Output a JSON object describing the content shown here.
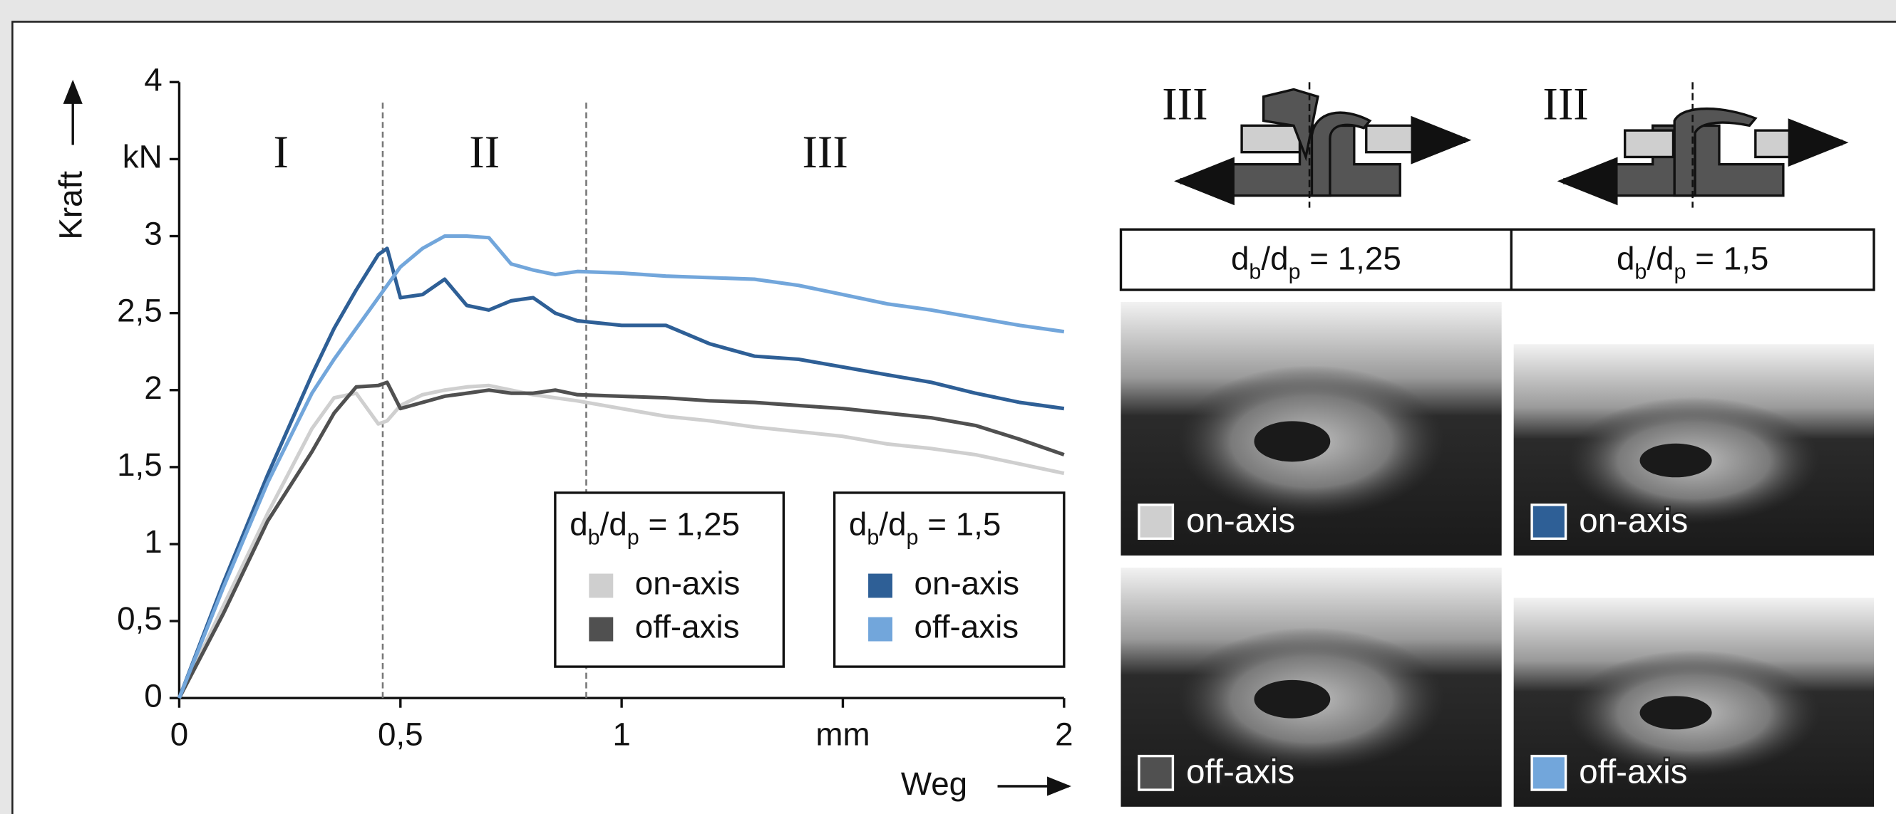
{
  "chart_data": {
    "type": "line",
    "y_label": "Kraft",
    "x_label": "Weg",
    "x": [
      0,
      0.1,
      0.2,
      0.3,
      0.35,
      0.4,
      0.45,
      0.47,
      0.5,
      0.55,
      0.6,
      0.65,
      0.7,
      0.75,
      0.8,
      0.85,
      0.9,
      1.0,
      1.1,
      1.2,
      1.3,
      1.4,
      1.5,
      1.6,
      1.7,
      1.8,
      1.9,
      2.0
    ],
    "series": [
      {
        "name": "on-axis",
        "color": "#cfcfcf",
        "values": [
          0,
          0.6,
          1.2,
          1.75,
          1.95,
          1.98,
          1.78,
          1.8,
          1.9,
          1.97,
          2.0,
          2.02,
          2.03,
          2.0,
          1.97,
          1.95,
          1.93,
          1.88,
          1.83,
          1.8,
          1.76,
          1.73,
          1.7,
          1.65,
          1.62,
          1.58,
          1.52,
          1.46
        ]
      },
      {
        "name": "off-axis",
        "color": "#505050",
        "values": [
          0,
          0.55,
          1.15,
          1.6,
          1.85,
          2.02,
          2.03,
          2.05,
          1.88,
          1.92,
          1.96,
          1.98,
          2.0,
          1.98,
          1.98,
          2.0,
          1.97,
          1.96,
          1.95,
          1.93,
          1.92,
          1.9,
          1.88,
          1.85,
          1.82,
          1.77,
          1.68,
          1.58
        ]
      },
      {
        "name": "on-axis",
        "color": "#2e5f96",
        "values": [
          0,
          0.75,
          1.45,
          2.1,
          2.4,
          2.65,
          2.88,
          2.92,
          2.6,
          2.62,
          2.72,
          2.55,
          2.52,
          2.58,
          2.6,
          2.5,
          2.45,
          2.42,
          2.42,
          2.3,
          2.22,
          2.2,
          2.15,
          2.1,
          2.05,
          1.98,
          1.92,
          1.88
        ]
      },
      {
        "name": "off-axis",
        "color": "#72a6db",
        "values": [
          0,
          0.72,
          1.4,
          1.98,
          2.2,
          2.4,
          2.6,
          2.68,
          2.8,
          2.92,
          3.0,
          3.0,
          2.99,
          2.82,
          2.78,
          2.75,
          2.77,
          2.76,
          2.74,
          2.73,
          2.72,
          2.68,
          2.62,
          2.56,
          2.52,
          2.47,
          2.42,
          2.38
        ]
      }
    ],
    "legend_groups": [
      {
        "title": [
          "d",
          "b",
          "/d",
          "p",
          " = 1,25"
        ]
      },
      {
        "title": [
          "d",
          "b",
          "/d",
          "p",
          " = 1,5"
        ]
      }
    ],
    "regions": [
      "I",
      "II",
      "III"
    ],
    "boundaries": [
      0.46,
      0.92
    ],
    "xlim": [
      0,
      2
    ],
    "ylim": [
      0,
      4
    ],
    "xticks": [
      0,
      {
        "value": 0.5,
        "label": "0,5"
      },
      1,
      {
        "value": 1.5,
        "label": "mm"
      },
      2
    ],
    "yticks": [
      0,
      {
        "value": 0.5,
        "label": "0,5"
      },
      1,
      {
        "value": 1.5,
        "label": "1,5"
      },
      2,
      {
        "value": 2.5,
        "label": "2,5"
      },
      3,
      {
        "value": 3.5,
        "label": "kN"
      },
      4
    ]
  },
  "panel": {
    "columns": [
      {
        "diagram_label": "III",
        "header": [
          "d",
          "b",
          "/d",
          "p",
          " = 1,25"
        ],
        "photos": [
          "on-axis",
          "off-axis"
        ]
      },
      {
        "diagram_label": "III",
        "header": [
          "d",
          "b",
          "/d",
          "p",
          " = 1,5"
        ],
        "photos": [
          "on-axis",
          "off-axis"
        ]
      }
    ]
  }
}
